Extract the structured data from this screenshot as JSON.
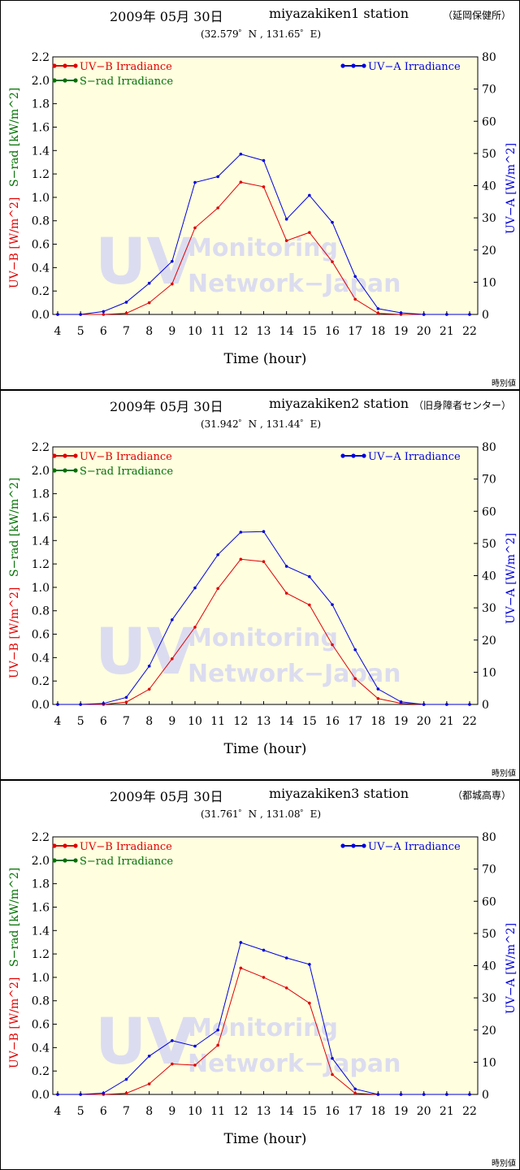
{
  "colors": {
    "uvb": "#e00000",
    "uva": "#0000dd",
    "srad": "#007000",
    "plot_bg": "#ffffe0",
    "watermark": "#dcdcf0"
  },
  "labels": {
    "uvb_legend": "UV−B Irradiance",
    "srad_legend": "S−rad Irradiance",
    "uva_legend": "UV−A Irradiance",
    "ylabel_uvb": "UV−B [W/m^2]",
    "ylabel_srad": "S−rad [kW/m^2]",
    "ylabel_uva": "UV−A [W/m^2]",
    "xlabel": "Time (hour)",
    "corner": "時別値",
    "watermark_big": "UV",
    "watermark_line1": "Monitoring",
    "watermark_line2": "Network−Japan"
  },
  "panels": [
    {
      "date": "2009年 05月 30日",
      "station": "miyazakiken1 station",
      "place": "（延岡保健所）",
      "coords": "(32.579゜N , 131.65゜E)"
    },
    {
      "date": "2009年 05月 30日",
      "station": "miyazakiken2 station",
      "place": "（旧身障者センター）",
      "coords": "(31.942゜N , 131.44゜E)"
    },
    {
      "date": "2009年 05月 30日",
      "station": "miyazakiken3 station",
      "place": "（都城高専）",
      "coords": "(31.761゜N , 131.08゜E)"
    }
  ],
  "chart_data": [
    {
      "type": "line",
      "x": [
        4,
        5,
        6,
        7,
        8,
        9,
        10,
        11,
        12,
        13,
        14,
        15,
        16,
        17,
        18,
        19,
        20,
        21,
        22
      ],
      "xlim": [
        4,
        22
      ],
      "ylim_left": [
        0,
        2.2
      ],
      "ylim_right": [
        0,
        80
      ],
      "left_ticks": [
        "0.0",
        "0.2",
        "0.4",
        "0.6",
        "0.8",
        "1.0",
        "1.2",
        "1.4",
        "1.6",
        "1.8",
        "2.0",
        "2.2"
      ],
      "right_ticks": [
        "0",
        "10",
        "20",
        "30",
        "40",
        "50",
        "60",
        "70",
        "80"
      ],
      "series": [
        {
          "name": "UV−B Irradiance",
          "axis": "left",
          "values": [
            0,
            0,
            0,
            0.01,
            0.1,
            0.26,
            0.74,
            0.91,
            1.13,
            1.09,
            0.63,
            0.7,
            0.45,
            0.13,
            0.01,
            0,
            0,
            0,
            0
          ]
        },
        {
          "name": "UV−A Irradiance",
          "axis": "right",
          "values": [
            0,
            0,
            0.9,
            3.8,
            9.7,
            16.5,
            41,
            42.8,
            49.8,
            47.8,
            29.6,
            37,
            28.6,
            11.8,
            1.8,
            0.5,
            0,
            0,
            0
          ]
        }
      ]
    },
    {
      "type": "line",
      "x": [
        4,
        5,
        6,
        7,
        8,
        9,
        10,
        11,
        12,
        13,
        14,
        15,
        16,
        17,
        18,
        19,
        20,
        21,
        22
      ],
      "xlim": [
        4,
        22
      ],
      "ylim_left": [
        0,
        2.2
      ],
      "ylim_right": [
        0,
        80
      ],
      "left_ticks": [
        "0.0",
        "0.2",
        "0.4",
        "0.6",
        "0.8",
        "1.0",
        "1.2",
        "1.4",
        "1.6",
        "1.8",
        "2.0",
        "2.2"
      ],
      "right_ticks": [
        "0",
        "10",
        "20",
        "30",
        "40",
        "50",
        "60",
        "70",
        "80"
      ],
      "series": [
        {
          "name": "UV−B Irradiance",
          "axis": "left",
          "values": [
            0,
            0,
            0,
            0.02,
            0.13,
            0.39,
            0.66,
            0.99,
            1.24,
            1.22,
            0.95,
            0.85,
            0.51,
            0.22,
            0.05,
            0.01,
            0,
            0,
            0
          ]
        },
        {
          "name": "UV−A Irradiance",
          "axis": "right",
          "values": [
            0,
            0,
            0.3,
            2.2,
            11.9,
            26.3,
            36.2,
            46.5,
            53.5,
            53.7,
            42.9,
            39.7,
            31,
            17,
            4.8,
            0.8,
            0,
            0,
            0
          ]
        }
      ]
    },
    {
      "type": "line",
      "x": [
        4,
        5,
        6,
        7,
        8,
        9,
        10,
        11,
        12,
        13,
        14,
        15,
        16,
        17,
        18,
        19,
        20,
        21,
        22
      ],
      "xlim": [
        4,
        22
      ],
      "ylim_left": [
        0,
        2.2
      ],
      "ylim_right": [
        0,
        80
      ],
      "left_ticks": [
        "0.0",
        "0.2",
        "0.4",
        "0.6",
        "0.8",
        "1.0",
        "1.2",
        "1.4",
        "1.6",
        "1.8",
        "2.0",
        "2.2"
      ],
      "right_ticks": [
        "0",
        "10",
        "20",
        "30",
        "40",
        "50",
        "60",
        "70",
        "80"
      ],
      "series": [
        {
          "name": "UV−B Irradiance",
          "axis": "left",
          "values": [
            0,
            0,
            0,
            0.01,
            0.09,
            0.26,
            0.25,
            0.42,
            1.08,
            1,
            0.91,
            0.78,
            0.17,
            0.01,
            0,
            0,
            0,
            0,
            0
          ]
        },
        {
          "name": "UV−A Irradiance",
          "axis": "right",
          "values": [
            0,
            0,
            0.4,
            4.7,
            11.9,
            16.7,
            15,
            20,
            47.2,
            44.8,
            42.4,
            40.4,
            11.2,
            1.7,
            0,
            0,
            0,
            0,
            0
          ]
        }
      ]
    }
  ]
}
